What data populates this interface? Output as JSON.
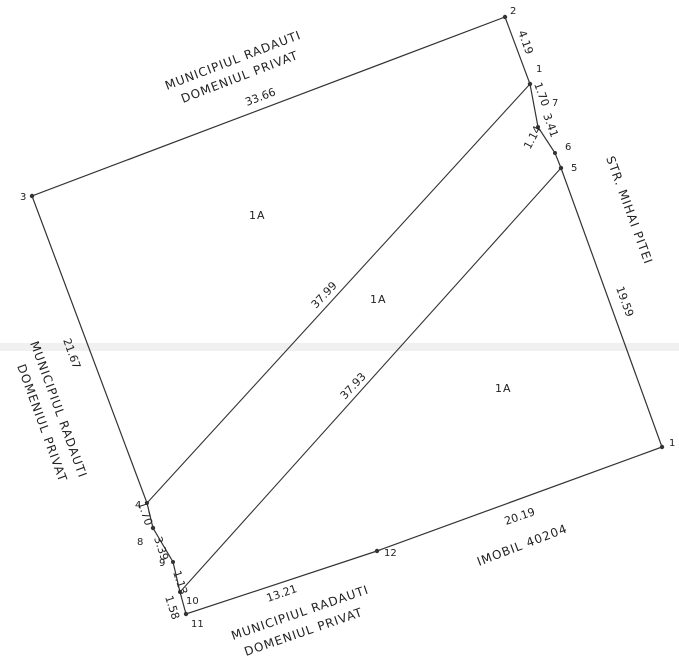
{
  "points": [
    "1",
    "2",
    "3",
    "4",
    "5",
    "6",
    "7",
    "8",
    "9",
    "10",
    "11",
    "12",
    "1"
  ],
  "distances": {
    "north": "33.66",
    "west": "21.67",
    "east": "19.59",
    "south_east": "20.19",
    "south_west": "13.21",
    "diag_upper": "37.99",
    "diag_lower": "37.93",
    "seg_2_1": "4.19",
    "seg_1_7": "1.70",
    "seg_7_6": "3.41",
    "seg_6_5": "1.14",
    "seg_4_8": "1.70",
    "seg_8_9": "3.39",
    "seg_9_10": "1.13",
    "seg_10_11": "1.58"
  },
  "areas": [
    "1A",
    "1A",
    "1A"
  ],
  "owners": {
    "north_line1": "MUNICIPIUL RADAUTI",
    "north_line2": "DOMENIUL PRIVAT",
    "west_line1": "MUNICIPIUL RADAUTI",
    "west_line2": "DOMENIUL PRIVAT",
    "east": "STR. MIHAI PITEI",
    "south_line1": "MUNICIPIUL RADAUTI",
    "south_line2": "DOMENIUL PRIVAT",
    "south_east": "IMOBIL 40204"
  }
}
